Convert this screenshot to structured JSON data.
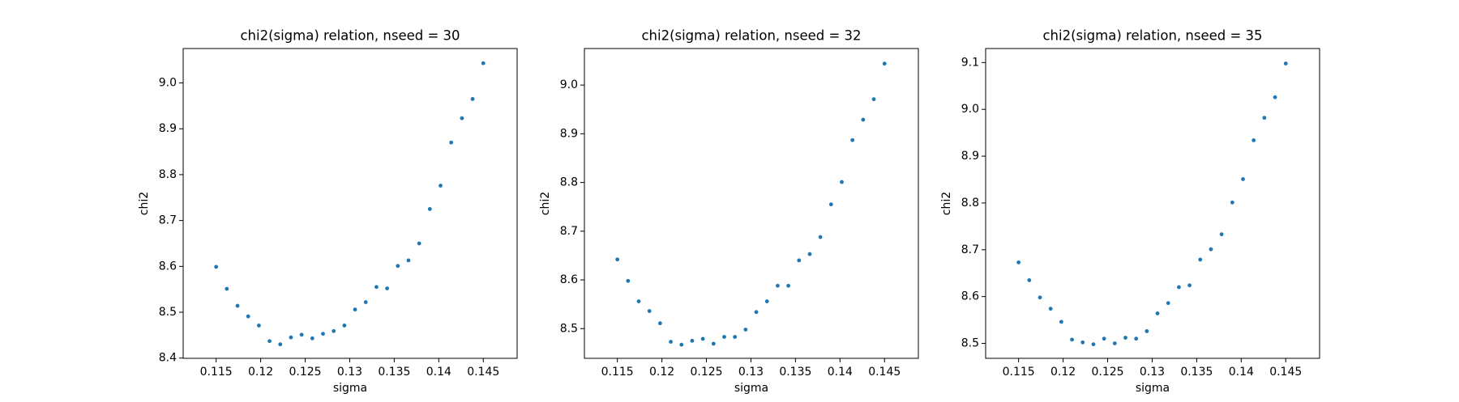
{
  "chart_data": [
    {
      "type": "scatter",
      "title": "chi2(sigma) relation, nseed = 30",
      "x_label": "sigma",
      "y_label": "chi2",
      "color": "#1f77b4",
      "x": [
        0.115,
        0.1162,
        0.1174,
        0.1186,
        0.1198,
        0.121,
        0.1222,
        0.1234,
        0.1246,
        0.1258,
        0.127,
        0.1282,
        0.1294,
        0.1306,
        0.1318,
        0.133,
        0.1342,
        0.1354,
        0.1366,
        0.1378,
        0.139,
        0.1402,
        0.1414,
        0.1426,
        0.1438,
        0.145
      ],
      "values": [
        8.599,
        8.551,
        8.514,
        8.491,
        8.471,
        8.437,
        8.43,
        8.445,
        8.451,
        8.443,
        8.453,
        8.459,
        8.471,
        8.506,
        8.522,
        8.555,
        8.552,
        8.601,
        8.613,
        8.65,
        8.725,
        8.776,
        8.87,
        8.923,
        8.965,
        9.043
      ],
      "xlim": [
        0.1113,
        0.1488
      ],
      "ylim": [
        8.3995,
        9.075
      ],
      "xticks": [
        0.115,
        0.12,
        0.125,
        0.13,
        0.135,
        0.14,
        0.145
      ],
      "yticks": [
        8.4,
        8.5,
        8.6,
        8.7,
        8.8,
        8.9,
        {
          "value": 9.0,
          "label": "9.0"
        }
      ]
    },
    {
      "type": "scatter",
      "title": "chi2(sigma) relation, nseed = 32",
      "x_label": "sigma",
      "y_label": "chi2",
      "color": "#1f77b4",
      "x": [
        0.115,
        0.1162,
        0.1174,
        0.1186,
        0.1198,
        0.121,
        0.1222,
        0.1234,
        0.1246,
        0.1258,
        0.127,
        0.1282,
        0.1294,
        0.1306,
        0.1318,
        0.133,
        0.1342,
        0.1354,
        0.1366,
        0.1378,
        0.139,
        0.1402,
        0.1414,
        0.1426,
        0.1438,
        0.145
      ],
      "values": [
        8.642,
        8.598,
        8.556,
        8.536,
        8.511,
        8.473,
        8.467,
        8.475,
        8.479,
        8.469,
        8.483,
        8.483,
        8.498,
        8.534,
        8.556,
        8.588,
        8.588,
        8.64,
        8.653,
        8.688,
        8.755,
        8.801,
        8.887,
        8.929,
        8.971,
        9.044
      ],
      "xlim": [
        0.1113,
        0.1488
      ],
      "ylim": [
        8.439,
        9.075
      ],
      "xticks": [
        0.115,
        0.12,
        0.125,
        0.13,
        0.135,
        0.14,
        0.145
      ],
      "yticks": [
        8.5,
        8.6,
        8.7,
        8.8,
        8.9,
        {
          "value": 9.0,
          "label": "9.0"
        }
      ]
    },
    {
      "type": "scatter",
      "title": "chi2(sigma) relation, nseed = 35",
      "x_label": "sigma",
      "y_label": "chi2",
      "color": "#1f77b4",
      "x": [
        0.115,
        0.1162,
        0.1174,
        0.1186,
        0.1198,
        0.121,
        0.1222,
        0.1234,
        0.1246,
        0.1258,
        0.127,
        0.1282,
        0.1294,
        0.1306,
        0.1318,
        0.133,
        0.1342,
        0.1354,
        0.1366,
        0.1378,
        0.139,
        0.1402,
        0.1414,
        0.1426,
        0.1438,
        0.145
      ],
      "values": [
        8.673,
        8.635,
        8.598,
        8.574,
        8.546,
        8.508,
        8.502,
        8.498,
        8.51,
        8.5,
        8.512,
        8.51,
        8.526,
        8.564,
        8.586,
        8.62,
        8.624,
        8.679,
        8.701,
        8.733,
        8.801,
        8.851,
        8.934,
        8.982,
        9.026,
        9.098
      ],
      "xlim": [
        0.1113,
        0.1488
      ],
      "ylim": [
        8.468,
        9.13
      ],
      "xticks": [
        0.115,
        0.12,
        0.125,
        0.13,
        0.135,
        0.14,
        0.145
      ],
      "yticks": [
        8.5,
        8.6,
        8.7,
        8.8,
        8.9,
        {
          "value": 9.0,
          "label": "9.0"
        },
        9.1
      ]
    }
  ]
}
